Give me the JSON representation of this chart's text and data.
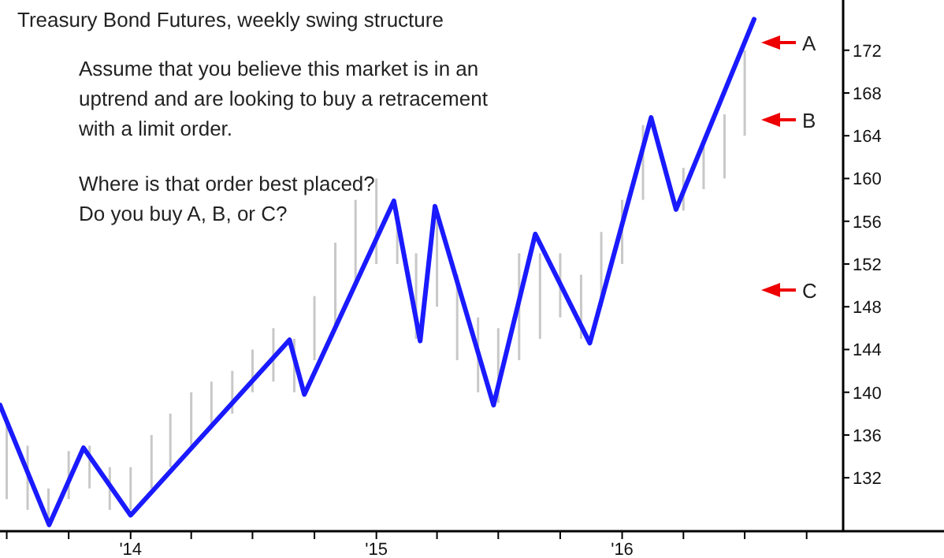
{
  "chart_data": {
    "type": "line",
    "title": "Treasury Bond Futures, weekly swing structure",
    "annotations": [
      "Assume that you believe this market is in an",
      "uptrend and are looking to buy a retracement",
      "with a limit order.",
      "Where is that order best placed?",
      "Do you buy A, B, or C?",
      "A",
      "B",
      "C"
    ],
    "xlim": [
      "2013-06-21",
      "2017-04-23"
    ],
    "xticks": [
      {
        "value": "2013-07-01",
        "label": null
      },
      {
        "value": "2013-10-01",
        "label": null
      },
      {
        "value": "2014-01-01",
        "label": "'14"
      },
      {
        "value": "2014-04-01",
        "label": null
      },
      {
        "value": "2014-07-01",
        "label": null
      },
      {
        "value": "2014-10-01",
        "label": null
      },
      {
        "value": "2015-01-01",
        "label": "'15"
      },
      {
        "value": "2015-04-01",
        "label": null
      },
      {
        "value": "2015-07-01",
        "label": null
      },
      {
        "value": "2015-10-01",
        "label": null
      },
      {
        "value": "2016-01-01",
        "label": "'16"
      },
      {
        "value": "2016-04-01",
        "label": null
      },
      {
        "value": "2016-07-01",
        "label": null
      },
      {
        "value": "2016-10-01",
        "label": null
      }
    ],
    "ylim": [
      127,
      176.7
    ],
    "yticks": [
      132,
      136,
      140,
      144,
      148,
      152,
      156,
      160,
      164,
      168,
      172
    ],
    "grid": false,
    "marker": "none",
    "line_style": "solid",
    "series": [
      {
        "type": "bar",
        "color": "#c8c8c8",
        "x": [
          "2013-07-01",
          "2013-08-01",
          "2013-09-01",
          "2013-10-01",
          "2013-11-01",
          "2013-12-01",
          "2014-01-01",
          "2014-02-01",
          "2014-03-01",
          "2014-04-01",
          "2014-05-01",
          "2014-06-01",
          "2014-07-01",
          "2014-08-01",
          "2014-09-01",
          "2014-10-01",
          "2014-11-01",
          "2014-12-01",
          "2015-01-01",
          "2015-02-01",
          "2015-03-01",
          "2015-04-01",
          "2015-05-01",
          "2015-06-01",
          "2015-07-01",
          "2015-08-01",
          "2015-09-01",
          "2015-10-01",
          "2015-11-01",
          "2015-12-01",
          "2016-01-01",
          "2016-02-01",
          "2016-04-01",
          "2016-05-01",
          "2016-06-01",
          "2016-07-01"
        ],
        "base": [
          130,
          129,
          127.5,
          130,
          131,
          129,
          129,
          131,
          133,
          135,
          137,
          138,
          140,
          141,
          140,
          143,
          146,
          150,
          152,
          152,
          145,
          148,
          143,
          140,
          139,
          143,
          145,
          147,
          145,
          148,
          152,
          158,
          157,
          159,
          160,
          164
        ],
        "values": [
          7,
          6,
          3.5,
          4.5,
          4,
          4,
          4,
          5,
          5,
          5,
          4,
          4,
          4,
          5,
          5,
          6,
          8,
          8,
          8,
          5,
          8,
          8,
          8,
          7,
          7,
          10,
          8,
          6,
          6,
          7,
          6,
          7,
          4,
          4,
          6,
          8
        ]
      },
      {
        "color": "#1a1aff",
        "x": [
          "2013-06-21",
          "2013-09-02",
          "2013-10-23",
          "2014-01-01",
          "2014-08-25",
          "2014-09-16",
          "2015-01-27",
          "2015-03-07",
          "2015-03-29",
          "2015-06-24",
          "2015-08-25",
          "2015-11-14",
          "2016-02-13",
          "2016-03-21",
          "2016-07-15"
        ],
        "values": [
          138.8,
          127.6,
          134.8,
          128.5,
          144.9,
          139.8,
          157.9,
          144.8,
          157.4,
          138.8,
          154.8,
          144.6,
          165.7,
          157.1,
          174.9
        ]
      }
    ]
  }
}
